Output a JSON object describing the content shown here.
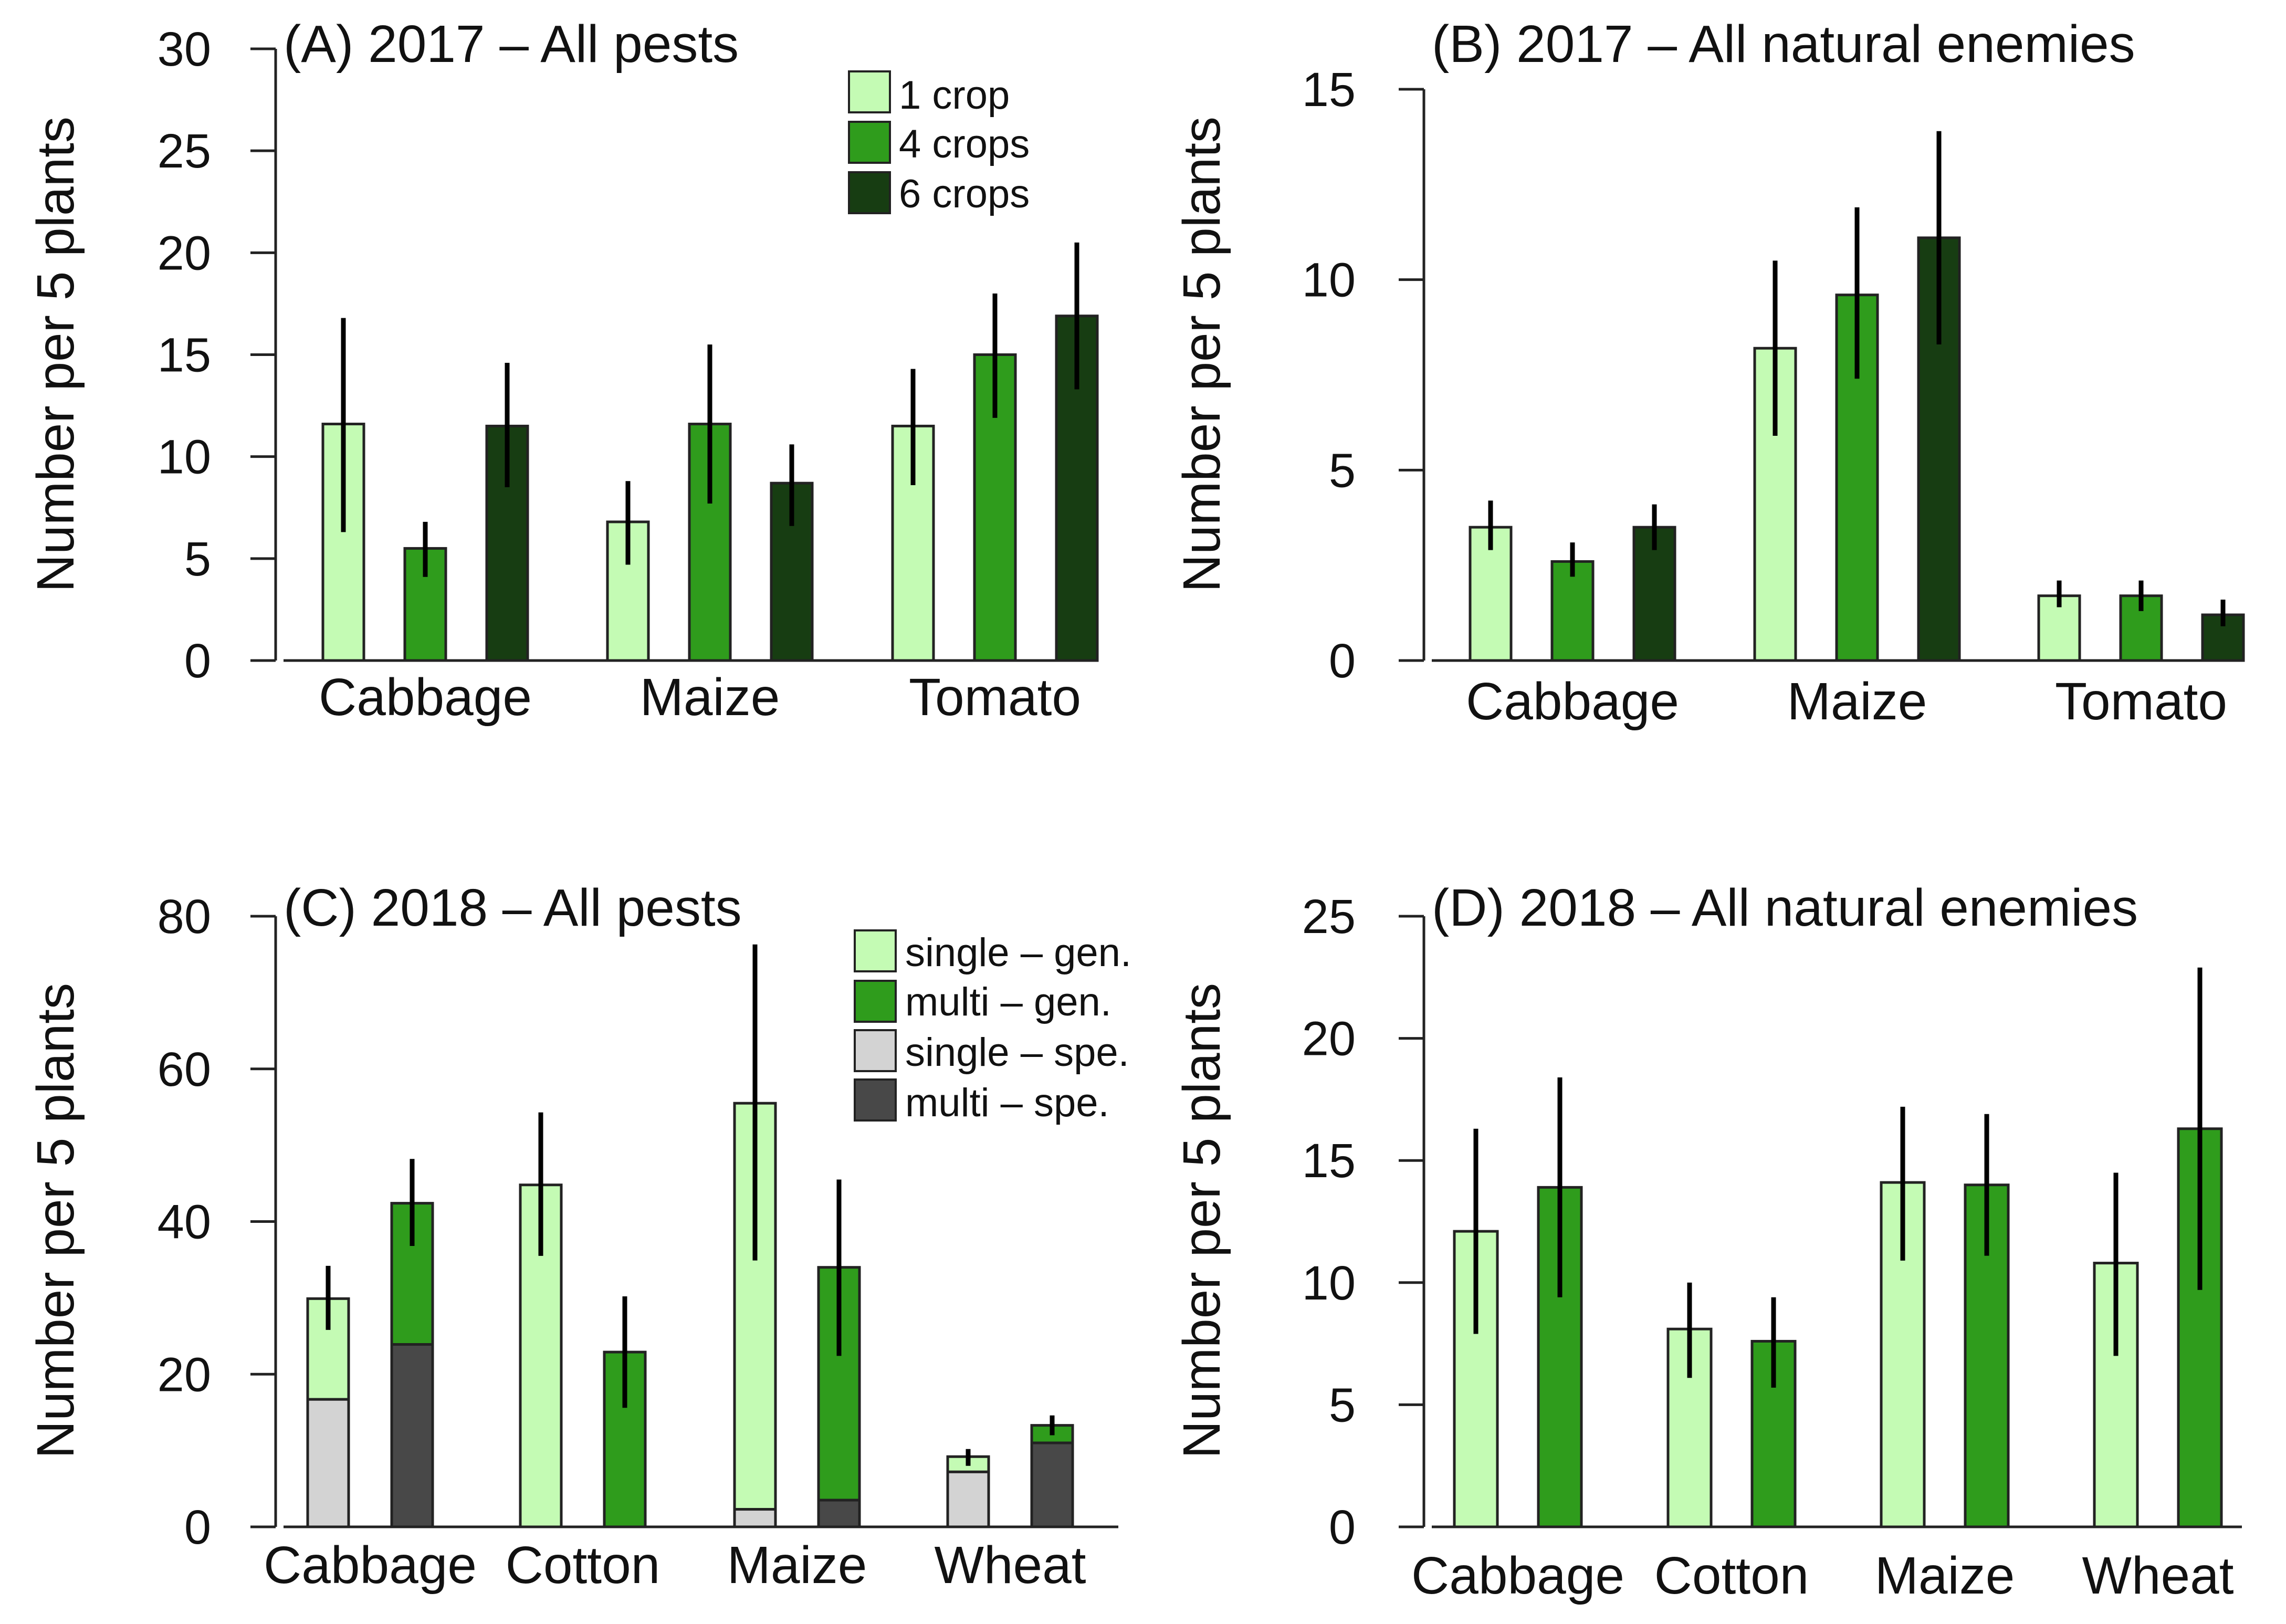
{
  "colors": {
    "single_gen": "#c4fbb4",
    "multi_gen": "#2f9c1c",
    "dark_green": "#173d12",
    "single_spe": "#d3d3d3",
    "multi_spe": "#484848",
    "bar_outline": "#222222",
    "error_bar": "#000000"
  },
  "chart_data": [
    {
      "id": "A",
      "type": "bar",
      "title": "(A) 2017 – All pests",
      "ylabel": "Number per 5 plants",
      "xlabel": "",
      "ylim": [
        0,
        30
      ],
      "yticks": [
        0,
        5,
        10,
        15,
        20,
        25,
        30
      ],
      "categories": [
        "Cabbage",
        "Maize",
        "Tomato"
      ],
      "legend": [
        {
          "label": "1 crop",
          "color": "#c4fbb4"
        },
        {
          "label": "4 crops",
          "color": "#2f9c1c"
        },
        {
          "label": "6 crops",
          "color": "#173d12"
        }
      ],
      "series": [
        {
          "name": "1 crop",
          "color": "#c4fbb4",
          "values": [
            11.6,
            6.8,
            11.5
          ],
          "err_low": [
            6.3,
            4.7,
            8.6
          ],
          "err_high": [
            16.8,
            8.8,
            14.3
          ]
        },
        {
          "name": "4 crops",
          "color": "#2f9c1c",
          "values": [
            5.5,
            11.6,
            15.0
          ],
          "err_low": [
            4.1,
            7.7,
            11.9
          ],
          "err_high": [
            6.8,
            15.5,
            18.0
          ]
        },
        {
          "name": "6 crops",
          "color": "#173d12",
          "values": [
            11.5,
            8.7,
            16.9
          ],
          "err_low": [
            8.5,
            6.6,
            13.3
          ],
          "err_high": [
            14.6,
            10.6,
            20.5
          ]
        }
      ]
    },
    {
      "id": "B",
      "type": "bar",
      "title": "(B) 2017 – All natural enemies",
      "ylabel": "Number per 5 plants",
      "xlabel": "",
      "ylim": [
        0,
        15
      ],
      "yticks": [
        0,
        5,
        10,
        15
      ],
      "categories": [
        "Cabbage",
        "Maize",
        "Tomato"
      ],
      "series": [
        {
          "name": "1 crop",
          "color": "#c4fbb4",
          "values": [
            3.5,
            8.2,
            1.7
          ],
          "err_low": [
            2.9,
            5.9,
            1.4
          ],
          "err_high": [
            4.2,
            10.5,
            2.1
          ]
        },
        {
          "name": "4 crops",
          "color": "#2f9c1c",
          "values": [
            2.6,
            9.6,
            1.7
          ],
          "err_low": [
            2.2,
            7.4,
            1.3
          ],
          "err_high": [
            3.1,
            11.9,
            2.1
          ]
        },
        {
          "name": "6 crops",
          "color": "#173d12",
          "values": [
            3.5,
            11.1,
            1.2
          ],
          "err_low": [
            2.9,
            8.3,
            0.9
          ],
          "err_high": [
            4.1,
            13.9,
            1.6
          ]
        }
      ]
    },
    {
      "id": "C",
      "type": "stacked-bar",
      "title": "(C) 2018 – All pests",
      "ylabel": "Number per 5 plants",
      "xlabel": "",
      "ylim": [
        0,
        80
      ],
      "yticks": [
        0,
        20,
        40,
        60,
        80
      ],
      "categories": [
        "Cabbage",
        "Cotton",
        "Maize",
        "Wheat"
      ],
      "legend": [
        {
          "label": "single – gen.",
          "color": "#c4fbb4"
        },
        {
          "label": "multi – gen.",
          "color": "#2f9c1c"
        },
        {
          "label": "single – spe.",
          "color": "#d3d3d3"
        },
        {
          "label": "multi – spe.",
          "color": "#484848"
        }
      ],
      "bars": [
        {
          "category": "Cabbage",
          "system": "single",
          "spe": 16.7,
          "total": 29.9,
          "err_low": 25.8,
          "err_high": 34.2
        },
        {
          "category": "Cabbage",
          "system": "multi",
          "spe": 23.9,
          "total": 42.4,
          "err_low": 36.8,
          "err_high": 48.2
        },
        {
          "category": "Cotton",
          "system": "single",
          "spe": 0,
          "total": 44.8,
          "err_low": 35.5,
          "err_high": 54.3
        },
        {
          "category": "Cotton",
          "system": "multi",
          "spe": 0,
          "total": 22.9,
          "err_low": 15.6,
          "err_high": 30.2
        },
        {
          "category": "Maize",
          "system": "single",
          "spe": 2.3,
          "total": 55.5,
          "err_low": 34.9,
          "err_high": 76.3
        },
        {
          "category": "Maize",
          "system": "multi",
          "spe": 3.5,
          "total": 34.0,
          "err_low": 22.4,
          "err_high": 45.5
        },
        {
          "category": "Wheat",
          "system": "single",
          "spe": 7.2,
          "total": 9.2,
          "err_low": 8.0,
          "err_high": 10.2
        },
        {
          "category": "Wheat",
          "system": "multi",
          "spe": 11.0,
          "total": 13.3,
          "err_low": 12.0,
          "err_high": 14.6
        }
      ]
    },
    {
      "id": "D",
      "type": "bar",
      "title": "(D) 2018 – All natural enemies",
      "ylabel": "Number per 5 plants",
      "xlabel": "",
      "ylim": [
        0,
        25
      ],
      "yticks": [
        0,
        5,
        10,
        15,
        20,
        25
      ],
      "categories": [
        "Cabbage",
        "Cotton",
        "Maize",
        "Wheat"
      ],
      "series": [
        {
          "name": "single",
          "color": "#c4fbb4",
          "values": [
            12.1,
            8.1,
            14.1,
            10.8
          ],
          "err_low": [
            7.9,
            6.1,
            10.9,
            7.0
          ],
          "err_high": [
            16.3,
            10.0,
            17.2,
            14.5
          ]
        },
        {
          "name": "multi",
          "color": "#2f9c1c",
          "values": [
            13.9,
            7.6,
            14.0,
            16.3
          ],
          "err_low": [
            9.4,
            5.7,
            11.1,
            9.7
          ],
          "err_high": [
            18.4,
            9.4,
            16.9,
            22.9
          ]
        }
      ]
    }
  ]
}
